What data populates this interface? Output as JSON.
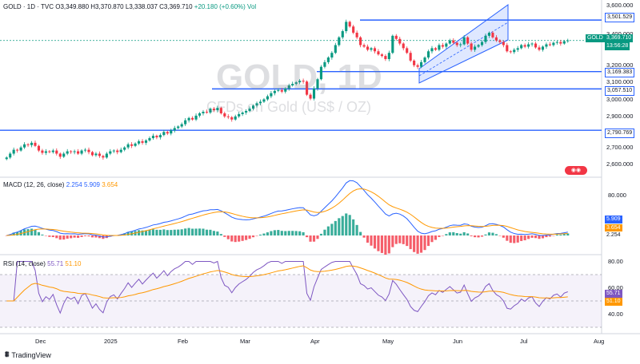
{
  "header": {
    "symbol": "GOLD · 1D · TVC",
    "open": "O3,349.880",
    "high": "H3,370.870",
    "low": "L3,338.037",
    "close": "C3,369.710",
    "change": "+20.180 (+0.60%)",
    "vol": "Vol"
  },
  "watermark": {
    "title": "GOLD, 1D",
    "subtitle": "CFDs on Gold (US$ / OZ)"
  },
  "price_axis": {
    "ticks": [
      "3,600.000",
      "3,400.000",
      "3,200.000",
      "3,100.000",
      "3,000.000",
      "2,900.000",
      "2,700.000",
      "2,600.000"
    ],
    "level_labels": [
      "3,501.529",
      "3,169.383",
      "3,057.510",
      "2,790.769"
    ],
    "symbol_tag": "GOLD",
    "last_price": "3,369.710",
    "countdown": "13:56:28"
  },
  "macd": {
    "label": "MACD (12, 26, close)",
    "v1": "2.254",
    "v2": "5.909",
    "v3": "3.654",
    "axis_top": "80.000",
    "tag1": "5.909",
    "tag2": "3.654",
    "tag3": "2.254"
  },
  "rsi": {
    "label": "RSI (14, close)",
    "v1": "55.71",
    "v2": "51.10",
    "ticks": [
      "80.00",
      "60.00",
      "40.00"
    ],
    "tag1": "55.71",
    "tag2": "51.10"
  },
  "time_axis": {
    "labels": [
      "Dec",
      "2025",
      "Feb",
      "Mar",
      "Apr",
      "May",
      "Jun",
      "Jul",
      "Aug"
    ]
  },
  "footer": {
    "brand": "TradingView"
  },
  "colors": {
    "up": "#089981",
    "down": "#f23645",
    "line_blue": "#2962ff",
    "ma_orange": "#ff9800",
    "rsi_purple": "#7e57c2"
  },
  "chart_data": {
    "type": "candlestick",
    "symbol": "GOLD",
    "timeframe": "1D",
    "ylim": [
      2560,
      3600
    ],
    "horizontal_levels": [
      3501.529,
      3169.383,
      3057.51,
      2790.769
    ],
    "closes": [
      2615,
      2640,
      2665,
      2660,
      2680,
      2700,
      2695,
      2710,
      2690,
      2660,
      2645,
      2655,
      2650,
      2660,
      2640,
      2620,
      2640,
      2655,
      2650,
      2655,
      2640,
      2660,
      2665,
      2650,
      2630,
      2640,
      2625,
      2615,
      2640,
      2655,
      2660,
      2650,
      2665,
      2680,
      2700,
      2690,
      2705,
      2720,
      2710,
      2725,
      2740,
      2755,
      2745,
      2760,
      2780,
      2770,
      2790,
      2805,
      2815,
      2830,
      2855,
      2870,
      2860,
      2885,
      2900,
      2910,
      2905,
      2930,
      2920,
      2935,
      2900,
      2880,
      2875,
      2860,
      2880,
      2895,
      2905,
      2915,
      2930,
      2950,
      2965,
      2975,
      2990,
      3010,
      3030,
      3045,
      3050,
      3040,
      3060,
      3080,
      3090,
      3100,
      3110,
      3105,
      3020,
      2995,
      3060,
      3120,
      3200,
      3230,
      3260,
      3290,
      3340,
      3390,
      3430,
      3490,
      3460,
      3420,
      3390,
      3340,
      3330,
      3310,
      3320,
      3300,
      3280,
      3270,
      3250,
      3290,
      3400,
      3380,
      3350,
      3320,
      3290,
      3240,
      3210,
      3200,
      3230,
      3260,
      3300,
      3320,
      3310,
      3340,
      3330,
      3350,
      3370,
      3355,
      3340,
      3345,
      3390,
      3350,
      3310,
      3330,
      3340,
      3360,
      3400,
      3420,
      3390,
      3370,
      3360,
      3340,
      3300,
      3295,
      3310,
      3320,
      3340,
      3330,
      3345,
      3350,
      3325,
      3310,
      3330,
      3345,
      3340,
      3355,
      3360,
      3350,
      3365,
      3370
    ],
    "macd": {
      "macd_last": 2.254,
      "signal_last": 5.909,
      "histogram_last": 3.654
    },
    "rsi": {
      "rsi_last": 55.71,
      "rsi_ma_last": 51.1,
      "levels": [
        70,
        50,
        30
      ]
    }
  }
}
